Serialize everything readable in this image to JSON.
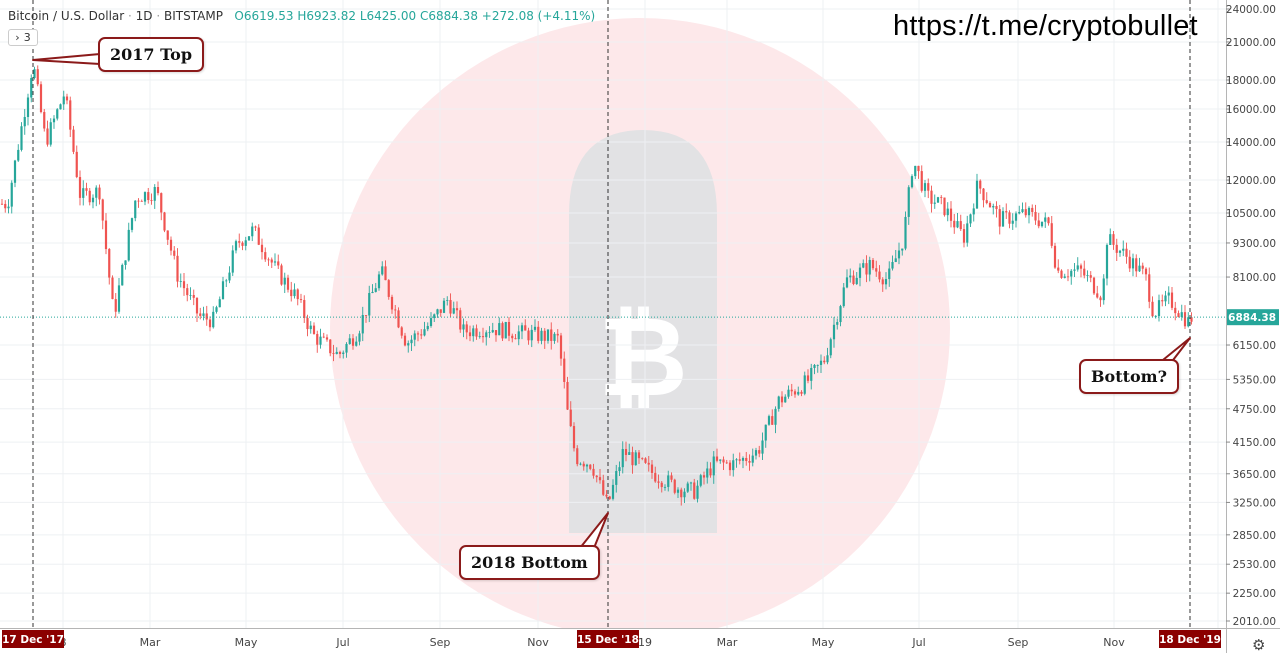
{
  "header": {
    "symbol": "Bitcoin / U.S. Dollar",
    "interval": "1D",
    "exchange": "BITSTAMP",
    "open": "O6619.53",
    "high": "H6923.82",
    "low": "L6425.00",
    "close": "C6884.38",
    "change": "+272.08 (+4.11%)"
  },
  "collapse_label": "3",
  "link_text": "https://t.me/cryptobullet",
  "colors": {
    "up": "#26a69a",
    "down": "#ef5350",
    "callout_border": "#8b1a1a",
    "date_tag": "#8b0000",
    "price_tag": "#26a69a"
  },
  "callouts": {
    "top": "2017 Top",
    "bottom2018": "2018 Bottom",
    "bottom_q": "Bottom?"
  },
  "date_tags": [
    "17 Dec '17",
    "15 Dec '18",
    "18 Dec '19"
  ],
  "chart_data": {
    "type": "candlestick",
    "scale": "log",
    "y_ticks": [
      "24000.00",
      "21000.00",
      "18000.00",
      "16000.00",
      "14000.00",
      "12000.00",
      "10500.00",
      "9300.00",
      "8100.00",
      "6150.00",
      "5350.00",
      "4750.00",
      "4150.00",
      "3650.00",
      "3250.00",
      "2850.00",
      "2530.00",
      "2250.00",
      "2010.00"
    ],
    "x_ticks": [
      "8",
      "Mar",
      "May",
      "Jul",
      "Sep",
      "Nov",
      "19",
      "Mar",
      "May",
      "Jul",
      "Sep",
      "Nov",
      "0"
    ],
    "last_price_label": "6884.38",
    "ylim": [
      2000,
      24500
    ],
    "series": [
      {
        "date": "2017-12-01",
        "close": 10900
      },
      {
        "date": "2017-12-10",
        "close": 15000
      },
      {
        "date": "2017-12-17",
        "close": 19300
      },
      {
        "date": "2017-12-25",
        "close": 14000
      },
      {
        "date": "2018-01-06",
        "close": 17100
      },
      {
        "date": "2018-01-16",
        "close": 11200
      },
      {
        "date": "2018-01-28",
        "close": 11500
      },
      {
        "date": "2018-02-06",
        "close": 6900
      },
      {
        "date": "2018-02-20",
        "close": 11200
      },
      {
        "date": "2018-03-05",
        "close": 11500
      },
      {
        "date": "2018-03-18",
        "close": 8200
      },
      {
        "date": "2018-04-01",
        "close": 6900
      },
      {
        "date": "2018-04-10",
        "close": 6800
      },
      {
        "date": "2018-04-25",
        "close": 9300
      },
      {
        "date": "2018-05-05",
        "close": 9800
      },
      {
        "date": "2018-05-20",
        "close": 8300
      },
      {
        "date": "2018-06-01",
        "close": 7500
      },
      {
        "date": "2018-06-12",
        "close": 6400
      },
      {
        "date": "2018-06-28",
        "close": 5900
      },
      {
        "date": "2018-07-10",
        "close": 6500
      },
      {
        "date": "2018-07-25",
        "close": 8300
      },
      {
        "date": "2018-08-10",
        "close": 6200
      },
      {
        "date": "2018-08-25",
        "close": 6700
      },
      {
        "date": "2018-09-05",
        "close": 7400
      },
      {
        "date": "2018-09-15",
        "close": 6500
      },
      {
        "date": "2018-10-01",
        "close": 6600
      },
      {
        "date": "2018-10-15",
        "close": 6500
      },
      {
        "date": "2018-11-01",
        "close": 6400
      },
      {
        "date": "2018-11-14",
        "close": 6300
      },
      {
        "date": "2018-11-20",
        "close": 4600
      },
      {
        "date": "2018-11-25",
        "close": 3900
      },
      {
        "date": "2018-12-05",
        "close": 3800
      },
      {
        "date": "2018-12-15",
        "close": 3200
      },
      {
        "date": "2018-12-25",
        "close": 4000
      },
      {
        "date": "2019-01-10",
        "close": 3700
      },
      {
        "date": "2019-01-28",
        "close": 3450
      },
      {
        "date": "2019-02-08",
        "close": 3400
      },
      {
        "date": "2019-02-20",
        "close": 3800
      },
      {
        "date": "2019-03-05",
        "close": 3800
      },
      {
        "date": "2019-03-20",
        "close": 4000
      },
      {
        "date": "2019-04-02",
        "close": 4900
      },
      {
        "date": "2019-04-20",
        "close": 5300
      },
      {
        "date": "2019-05-01",
        "close": 5800
      },
      {
        "date": "2019-05-15",
        "close": 8000
      },
      {
        "date": "2019-05-30",
        "close": 8500
      },
      {
        "date": "2019-06-10",
        "close": 8000
      },
      {
        "date": "2019-06-20",
        "close": 9500
      },
      {
        "date": "2019-06-26",
        "close": 13000
      },
      {
        "date": "2019-07-05",
        "close": 11200
      },
      {
        "date": "2019-07-15",
        "close": 10800
      },
      {
        "date": "2019-07-28",
        "close": 9500
      },
      {
        "date": "2019-08-06",
        "close": 11800
      },
      {
        "date": "2019-08-20",
        "close": 10200
      },
      {
        "date": "2019-09-05",
        "close": 10500
      },
      {
        "date": "2019-09-20",
        "close": 10000
      },
      {
        "date": "2019-09-25",
        "close": 8300
      },
      {
        "date": "2019-10-10",
        "close": 8300
      },
      {
        "date": "2019-10-24",
        "close": 7500
      },
      {
        "date": "2019-10-26",
        "close": 9500
      },
      {
        "date": "2019-11-08",
        "close": 8800
      },
      {
        "date": "2019-11-20",
        "close": 8100
      },
      {
        "date": "2019-11-25",
        "close": 7000
      },
      {
        "date": "2019-12-05",
        "close": 7400
      },
      {
        "date": "2019-12-18",
        "close": 6700
      },
      {
        "date": "2019-12-19",
        "close": 6884
      }
    ]
  }
}
